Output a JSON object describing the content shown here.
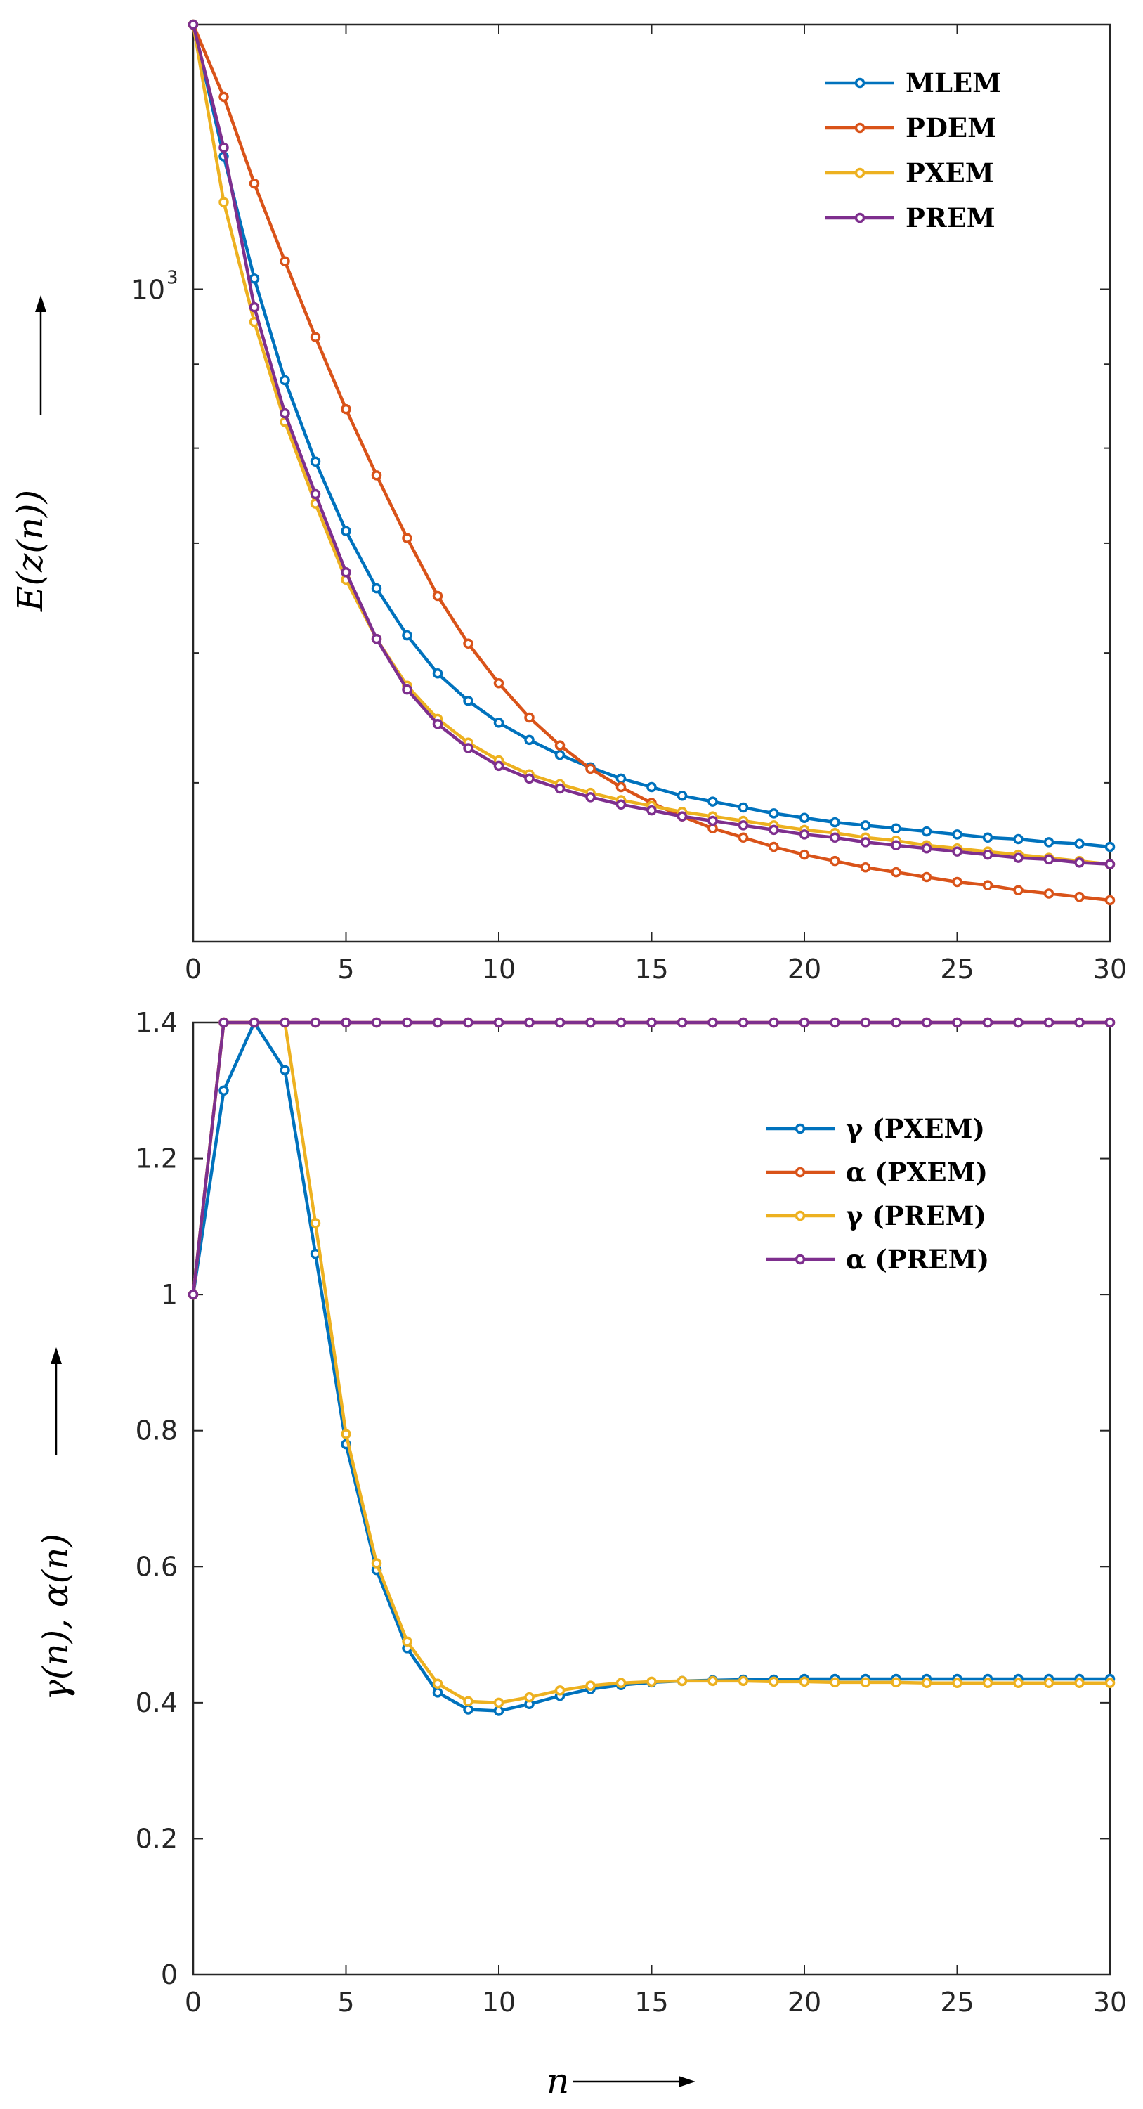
{
  "chart_data": [
    {
      "type": "line",
      "yscale": "log",
      "ylabel": "E(z(n))",
      "xlabel": "",
      "xlim": [
        0,
        30
      ],
      "ylim": [
        400,
        1450
      ],
      "xticks": [
        "0",
        "5",
        "10",
        "15",
        "20",
        "25",
        "30"
      ],
      "yticks": [
        {
          "base": "10",
          "exp": "3"
        }
      ],
      "legend": [
        "MLEM",
        "PDEM",
        "PXEM",
        "PREM"
      ],
      "legend_position": "top-right",
      "x": [
        0,
        1,
        2,
        3,
        4,
        5,
        6,
        7,
        8,
        9,
        10,
        11,
        12,
        13,
        14,
        15,
        16,
        17,
        18,
        19,
        20,
        21,
        22,
        23,
        24,
        25,
        26,
        27,
        28,
        29,
        30
      ],
      "series": [
        {
          "name": "MLEM",
          "color": "#0072BD",
          "values": [
            1450,
            1205,
            1015,
            880,
            785,
            712,
            657,
            615,
            583,
            561,
            544,
            531,
            520,
            511,
            503,
            497,
            491,
            487,
            483,
            479,
            476,
            473,
            471,
            469,
            467,
            465,
            463,
            462,
            460,
            459,
            457
          ]
        },
        {
          "name": "PDEM",
          "color": "#D95319",
          "values": [
            1450,
            1310,
            1160,
            1040,
            935,
            845,
            770,
            705,
            650,
            608,
            575,
            548,
            527,
            510,
            497,
            486,
            477,
            469,
            463,
            457,
            452,
            448,
            444,
            441,
            438,
            435,
            433,
            430,
            428,
            426,
            424
          ]
        },
        {
          "name": "PXEM",
          "color": "#EDB120",
          "values": [
            1450,
            1130,
            955,
            830,
            740,
            665,
            612,
            573,
            547,
            529,
            516,
            506,
            499,
            493,
            488,
            484,
            480,
            477,
            474,
            471,
            468,
            466,
            463,
            461,
            458,
            456,
            454,
            452,
            450,
            448,
            446
          ]
        },
        {
          "name": "PREM",
          "color": "#7E2F8E",
          "values": [
            1450,
            1220,
            975,
            840,
            750,
            672,
            612,
            570,
            543,
            525,
            512,
            503,
            496,
            490,
            485,
            481,
            477,
            474,
            471,
            468,
            465,
            463,
            460,
            458,
            456,
            454,
            452,
            450,
            449,
            447,
            446
          ]
        }
      ]
    },
    {
      "type": "line",
      "ylabel": "γ(n), α(n)",
      "xlabel": "n",
      "xlim": [
        0,
        30
      ],
      "ylim": [
        0,
        1.4
      ],
      "xticks": [
        "0",
        "5",
        "10",
        "15",
        "20",
        "25",
        "30"
      ],
      "yticks": [
        "0",
        "0.2",
        "0.4",
        "0.6",
        "0.8",
        "1",
        "1.2",
        "1.4"
      ],
      "legend": [
        "γ (PXEM)",
        "α (PXEM)",
        "γ (PREM)",
        "α (PREM)"
      ],
      "legend_position": "top-right",
      "x": [
        0,
        1,
        2,
        3,
        4,
        5,
        6,
        7,
        8,
        9,
        10,
        11,
        12,
        13,
        14,
        15,
        16,
        17,
        18,
        19,
        20,
        21,
        22,
        23,
        24,
        25,
        26,
        27,
        28,
        29,
        30
      ],
      "series": [
        {
          "name": "γ (PXEM)",
          "color": "#0072BD",
          "values": [
            1.0,
            1.3,
            1.4,
            1.33,
            1.06,
            0.78,
            0.595,
            0.48,
            0.415,
            0.39,
            0.388,
            0.398,
            0.41,
            0.42,
            0.426,
            0.43,
            0.432,
            0.433,
            0.434,
            0.434,
            0.435,
            0.435,
            0.435,
            0.435,
            0.435,
            0.435,
            0.435,
            0.435,
            0.435,
            0.435,
            0.435
          ]
        },
        {
          "name": "α (PXEM)",
          "color": "#D95319",
          "values": [
            1.0,
            1.4,
            1.4,
            1.4,
            1.4,
            1.4,
            1.4,
            1.4,
            1.4,
            1.4,
            1.4,
            1.4,
            1.4,
            1.4,
            1.4,
            1.4,
            1.4,
            1.4,
            1.4,
            1.4,
            1.4,
            1.4,
            1.4,
            1.4,
            1.4,
            1.4,
            1.4,
            1.4,
            1.4,
            1.4,
            1.4
          ]
        },
        {
          "name": "γ (PREM)",
          "color": "#EDB120",
          "values": [
            1.0,
            1.4,
            1.4,
            1.4,
            1.105,
            0.795,
            0.605,
            0.49,
            0.428,
            0.402,
            0.4,
            0.408,
            0.418,
            0.425,
            0.429,
            0.431,
            0.432,
            0.432,
            0.432,
            0.431,
            0.431,
            0.43,
            0.43,
            0.43,
            0.429,
            0.429,
            0.429,
            0.429,
            0.429,
            0.429,
            0.429
          ]
        },
        {
          "name": "α (PREM)",
          "color": "#7E2F8E",
          "values": [
            1.0,
            1.4,
            1.4,
            1.4,
            1.4,
            1.4,
            1.4,
            1.4,
            1.4,
            1.4,
            1.4,
            1.4,
            1.4,
            1.4,
            1.4,
            1.4,
            1.4,
            1.4,
            1.4,
            1.4,
            1.4,
            1.4,
            1.4,
            1.4,
            1.4,
            1.4,
            1.4,
            1.4,
            1.4,
            1.4,
            1.4
          ]
        }
      ]
    }
  ]
}
